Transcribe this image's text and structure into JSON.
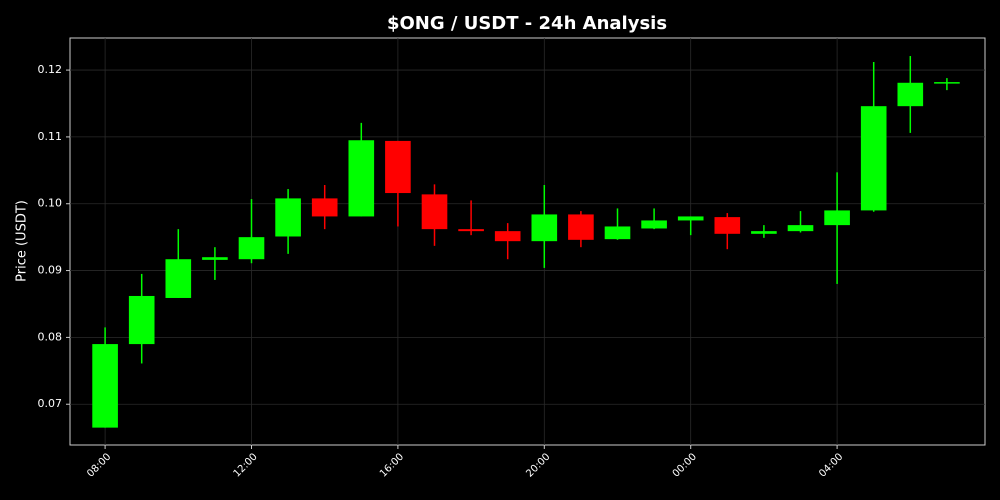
{
  "chart_data": {
    "type": "candlestick",
    "title": "$ONG / USDT - 24h Analysis",
    "ylabel": "Price (USDT)",
    "categories": [
      "08:00",
      null,
      null,
      null,
      "12:00",
      null,
      null,
      null,
      "16:00",
      null,
      null,
      null,
      "20:00",
      null,
      null,
      null,
      "00:00",
      null,
      null,
      null,
      "04:00",
      null,
      null,
      null
    ],
    "open": [
      0.0665,
      0.079,
      0.0859,
      0.0916,
      0.0917,
      0.0951,
      0.1008,
      0.0981,
      0.1094,
      0.1014,
      0.0962,
      0.0959,
      0.0944,
      0.0984,
      0.0947,
      0.0963,
      0.0975,
      0.098,
      0.0955,
      0.0959,
      0.0968,
      0.099,
      0.1146,
      0.118
    ],
    "high": [
      0.0815,
      0.0895,
      0.0962,
      0.0935,
      0.1007,
      0.1022,
      0.1028,
      0.1121,
      0.1094,
      0.1029,
      0.1005,
      0.0971,
      0.1028,
      0.0989,
      0.0993,
      0.0993,
      0.0981,
      0.0986,
      0.0968,
      0.0989,
      0.1047,
      0.1212,
      0.1221,
      0.1188
    ],
    "low": [
      0.0665,
      0.0761,
      0.0859,
      0.0886,
      0.0911,
      0.0925,
      0.0962,
      0.0981,
      0.0966,
      0.0937,
      0.0953,
      0.0917,
      0.0904,
      0.0935,
      0.0946,
      0.0962,
      0.0953,
      0.0932,
      0.0949,
      0.0957,
      0.088,
      0.0988,
      0.1106,
      0.117
    ],
    "close": [
      0.079,
      0.0862,
      0.0917,
      0.092,
      0.095,
      0.1008,
      0.0981,
      0.1095,
      0.1016,
      0.0962,
      0.0959,
      0.0944,
      0.0984,
      0.0946,
      0.0966,
      0.0975,
      0.0981,
      0.0955,
      0.0959,
      0.0968,
      0.099,
      0.1146,
      0.1181,
      0.1182
    ],
    "up_color": "#00ff00",
    "down_color": "#ff0000",
    "ylim": [
      0.0639,
      0.1248
    ],
    "yticks": [
      0.07,
      0.08,
      0.09,
      {
        "value": 0.1,
        "label": "0.10"
      },
      0.11,
      0.12
    ],
    "grid": true
  }
}
